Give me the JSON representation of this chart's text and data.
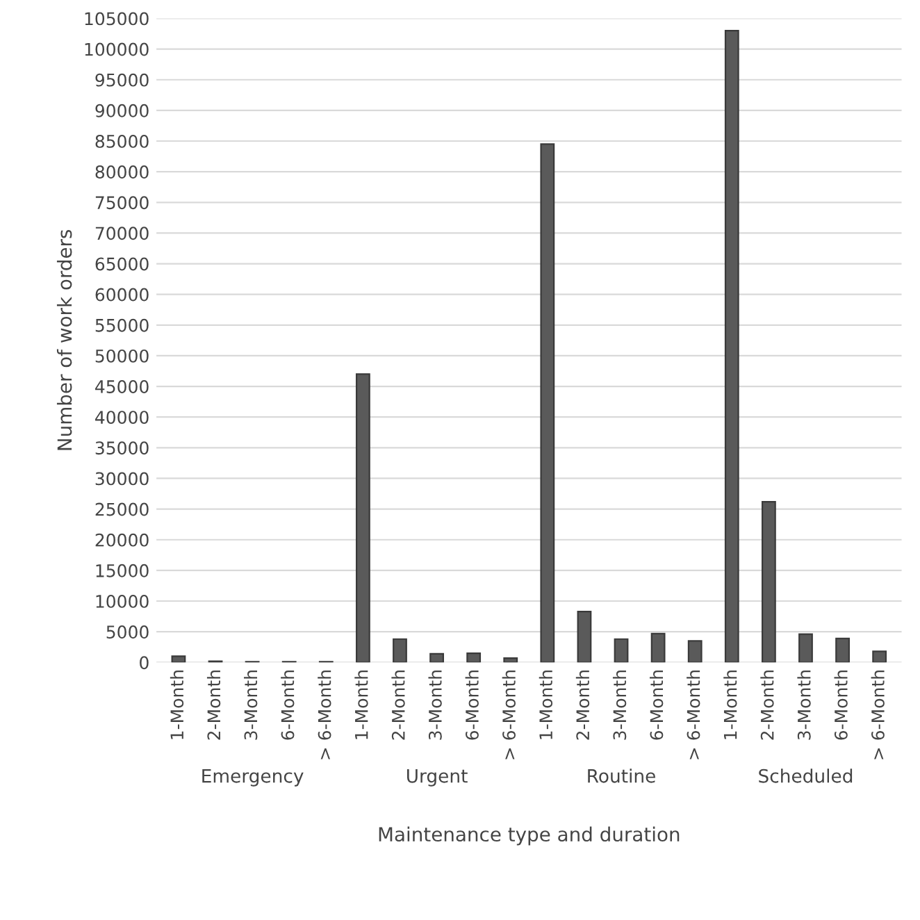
{
  "chart_data": {
    "type": "bar",
    "xlabel": "Maintenance type and duration",
    "ylabel": "Number of work orders",
    "categories": [
      "1-Month",
      "2-Month",
      "3-Month",
      "6-Month",
      "> 6-Month",
      "1-Month",
      "2-Month",
      "3-Month",
      "6-Month",
      "> 6-Month",
      "1-Month",
      "2-Month",
      "3-Month",
      "6-Month",
      "> 6-Month",
      "1-Month",
      "2-Month",
      "3-Month",
      "6-Month",
      "> 6-Month"
    ],
    "values": [
      1000,
      200,
      100,
      100,
      100,
      47000,
      3800,
      1400,
      1500,
      700,
      84500,
      8300,
      3800,
      4700,
      3500,
      103000,
      26200,
      4600,
      3900,
      1800
    ],
    "color": "#5a5a5a",
    "annotations": [
      "Emergency",
      "Urgent",
      "Routine",
      "Scheduled"
    ],
    "ylim": [
      0,
      105000
    ],
    "yticks": [
      0,
      5000,
      10000,
      15000,
      20000,
      25000,
      30000,
      35000,
      40000,
      45000,
      50000,
      55000,
      60000,
      65000,
      70000,
      75000,
      80000,
      85000,
      90000,
      95000,
      100000,
      105000
    ],
    "grid": "y"
  }
}
